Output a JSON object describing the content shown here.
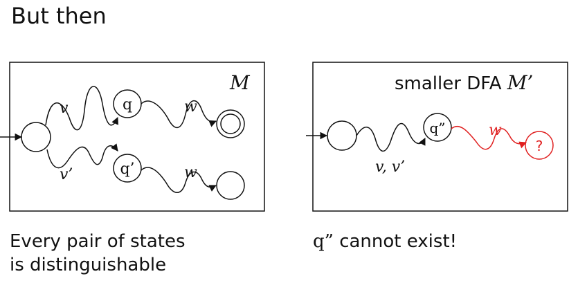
{
  "slide": {
    "title": "But then",
    "caption_left_line1": "Every pair of states",
    "caption_left_line2": "is distinguishable",
    "caption_right_q": "q”",
    "caption_right_rest": " cannot exist!"
  },
  "left_diagram": {
    "machine_label": "M",
    "state_q": "q",
    "state_q_prime": "q’",
    "edge_v": "v",
    "edge_v_prime": "v’",
    "edge_w_top": "w",
    "edge_w_bottom": "w"
  },
  "right_diagram": {
    "machine_label_prefix": "smaller DFA ",
    "machine_label_symbol": "M’",
    "state_q_double": "q”",
    "state_unknown": "?",
    "edge_v_v_prime": "v, v’",
    "edge_w": "w"
  },
  "colors": {
    "ink": "#111111",
    "highlight": "#e02020"
  }
}
